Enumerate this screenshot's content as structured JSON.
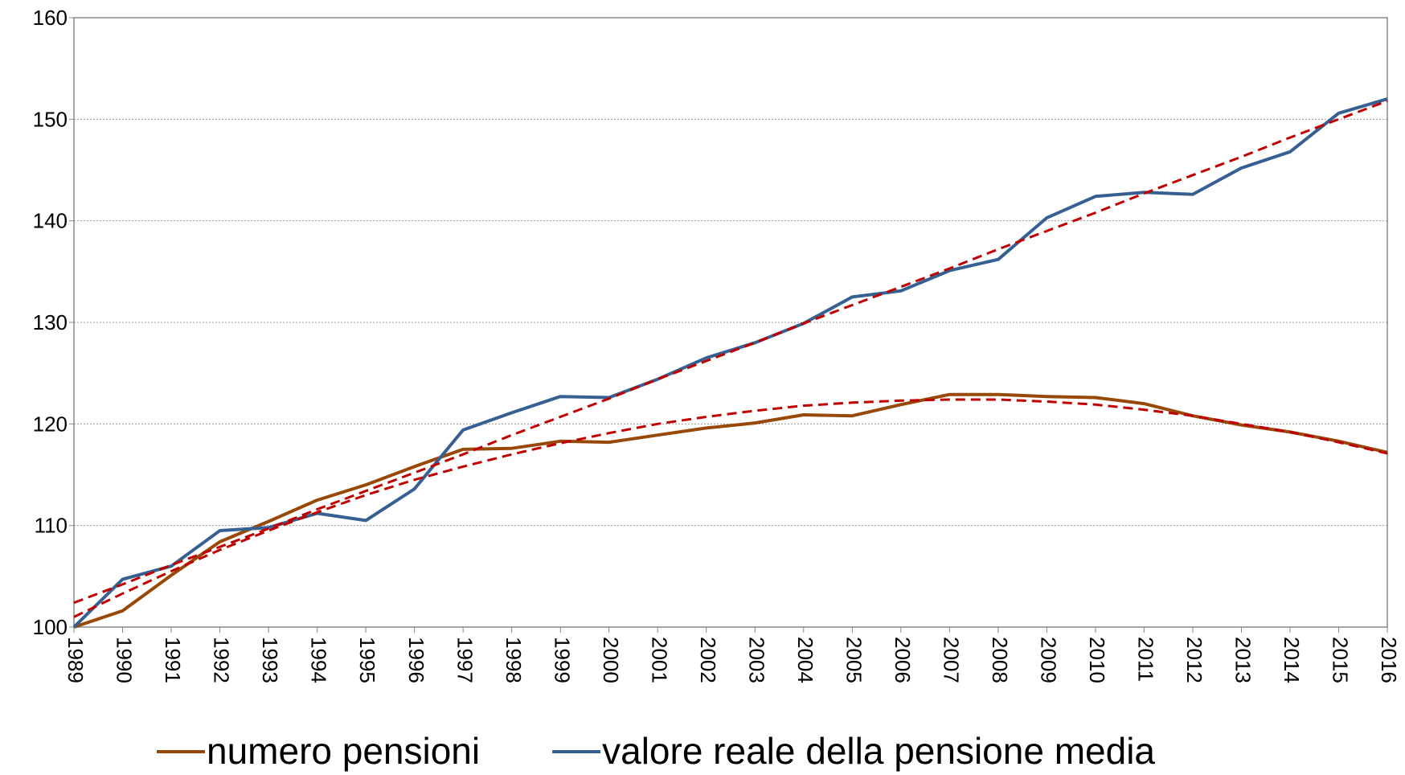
{
  "chart_data": {
    "type": "line",
    "categories": [
      "1989",
      "1990",
      "1991",
      "1992",
      "1993",
      "1994",
      "1995",
      "1996",
      "1997",
      "1998",
      "1999",
      "2000",
      "2001",
      "2002",
      "2003",
      "2004",
      "2005",
      "2006",
      "2007",
      "2008",
      "2009",
      "2010",
      "2011",
      "2012",
      "2013",
      "2014",
      "2015",
      "2016"
    ],
    "series": [
      {
        "name": "numero pensioni",
        "color": "#984807",
        "values": [
          100,
          101.6,
          105.1,
          108.4,
          110.4,
          112.5,
          114.0,
          115.8,
          117.5,
          117.6,
          118.3,
          118.2,
          118.9,
          119.6,
          120.1,
          120.9,
          120.8,
          121.9,
          122.9,
          122.9,
          122.7,
          122.6,
          122.0,
          120.8,
          119.9,
          119.2,
          118.3,
          117.2
        ]
      },
      {
        "name": "valore reale della pensione media",
        "color": "#366092",
        "values": [
          100,
          104.7,
          106.0,
          109.5,
          109.8,
          111.2,
          110.5,
          113.6,
          119.4,
          121.1,
          122.7,
          122.6,
          124.4,
          126.5,
          128.0,
          129.9,
          132.5,
          133.1,
          135.1,
          136.2,
          140.3,
          142.4,
          142.8,
          142.6,
          145.2,
          146.8,
          150.6,
          152.0
        ]
      }
    ],
    "trendlines": [
      {
        "color": "#c00000",
        "dashed": true,
        "values": [
          101.0,
          103.3,
          105.5,
          107.6,
          109.5,
          111.3,
          113.0,
          114.5,
          115.8,
          117.0,
          118.1,
          119.1,
          120.0,
          120.7,
          121.3,
          121.8,
          122.1,
          122.3,
          122.4,
          122.4,
          122.2,
          121.9,
          121.4,
          120.8,
          120.0,
          119.2,
          118.2,
          117.1
        ]
      },
      {
        "color": "#c00000",
        "dashed": true,
        "values": [
          102.4,
          104.2,
          106.1,
          107.9,
          109.7,
          111.6,
          113.4,
          115.2,
          117.0,
          118.9,
          120.7,
          122.5,
          124.4,
          126.2,
          128.0,
          129.9,
          131.7,
          133.5,
          135.3,
          137.2,
          139.0,
          140.8,
          142.7,
          144.5,
          146.3,
          148.2,
          150.0,
          151.8
        ]
      }
    ],
    "ylim": [
      100,
      160
    ],
    "yticks": [
      100,
      110,
      120,
      130,
      140,
      150,
      160
    ],
    "grid": true
  }
}
